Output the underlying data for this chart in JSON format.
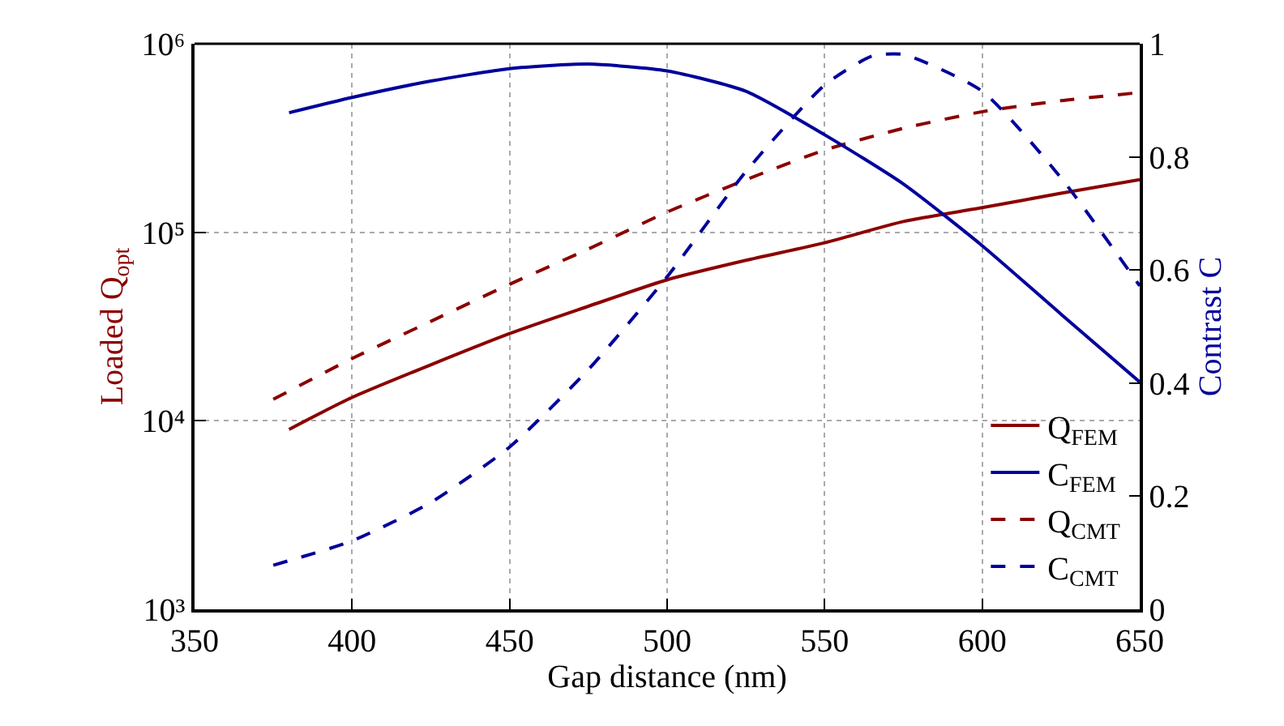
{
  "chart_data": {
    "type": "line",
    "xlabel": "Gap distance (nm)",
    "ylabel": "Loaded Q$_{opt}$",
    "y2label": "Contrast C",
    "xlim": [
      350,
      650
    ],
    "xticks": [
      350,
      400,
      450,
      500,
      550,
      600,
      650
    ],
    "ylim": [
      1000,
      1000000
    ],
    "yticks": [
      {
        "value": 1000,
        "label": "10³"
      },
      {
        "value": 10000,
        "label": "10⁴"
      },
      {
        "value": 100000,
        "label": "10⁵"
      },
      {
        "value": 1000000,
        "label": "10⁶"
      }
    ],
    "y2lim": [
      0,
      1
    ],
    "y2ticks": [
      0,
      0.2,
      0.4,
      0.6,
      0.8,
      1
    ],
    "log": "y",
    "grid": true,
    "legend": "bottom right",
    "marker": "none",
    "series": [
      {
        "name": "Q$_{FEM}$",
        "color": "#8b0000",
        "line_style": "solid",
        "x": [
          380,
          400,
          450,
          475,
          500,
          525,
          550,
          575,
          600,
          625,
          650
        ],
        "values": [
          9000,
          13300,
          29000,
          40500,
          56000,
          71000,
          88000,
          114000,
          135000,
          161000,
          190000
        ]
      },
      {
        "name": "C$_{FEM}$",
        "color": "#00009b",
        "line_style": "solid",
        "axis": "y2",
        "x": [
          380,
          400,
          425,
          450,
          475,
          500,
          525,
          550,
          575,
          600,
          625,
          650
        ],
        "values": [
          0.878,
          0.905,
          0.934,
          0.956,
          0.964,
          0.952,
          0.916,
          0.839,
          0.752,
          0.643,
          0.522,
          0.402
        ]
      },
      {
        "name": "Q$_{CMT}$",
        "color": "#8b0000",
        "line_style": "dashed",
        "x": [
          375,
          400,
          425,
          450,
          475,
          500,
          525,
          550,
          575,
          600,
          625,
          650
        ],
        "values": [
          13000,
          21400,
          33700,
          53000,
          81500,
          128000,
          190000,
          273000,
          356000,
          436000,
          499000,
          551000
        ]
      },
      {
        "name": "C$_{CMT}$",
        "color": "#00009b",
        "line_style": "dashed",
        "axis": "y2",
        "x": [
          375,
          400,
          425,
          450,
          475,
          500,
          525,
          550,
          565,
          575,
          600,
          625,
          650
        ],
        "values": [
          0.078,
          0.121,
          0.189,
          0.287,
          0.424,
          0.588,
          0.774,
          0.927,
          0.978,
          0.981,
          0.916,
          0.763,
          0.572
        ]
      }
    ]
  }
}
